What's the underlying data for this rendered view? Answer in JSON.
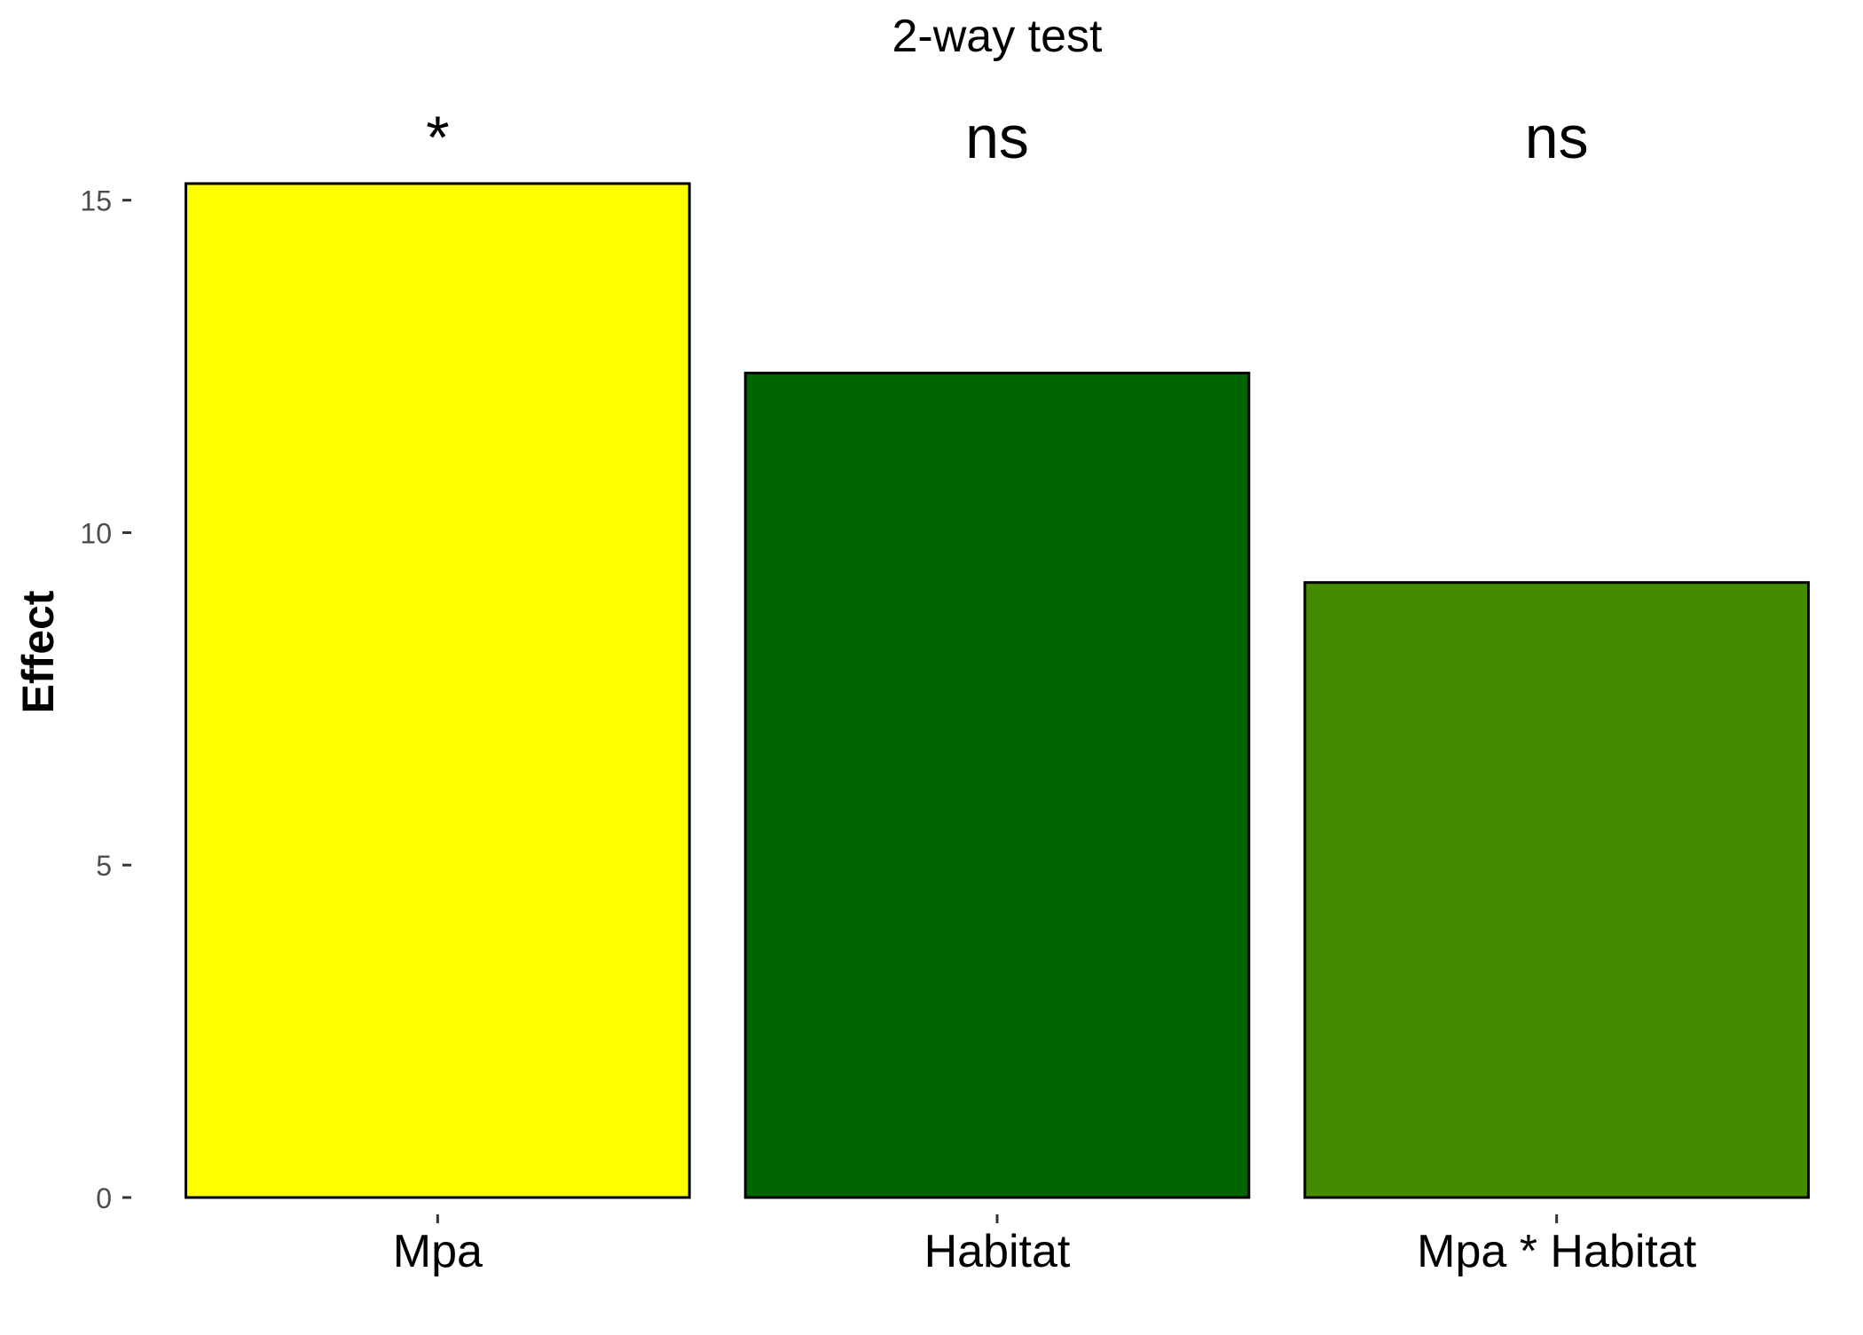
{
  "chart_data": {
    "type": "bar",
    "title": "2-way test",
    "xlabel": "",
    "ylabel": "Effect",
    "categories": [
      "Mpa",
      "Habitat",
      "Mpa * Habitat"
    ],
    "values": [
      15.25,
      12.4,
      9.25
    ],
    "colors": [
      "#FFFF00",
      "#006400",
      "#458B00"
    ],
    "annotations": [
      "*",
      "ns",
      "ns"
    ],
    "ylim": [
      0,
      16.25
    ],
    "yticks": [
      0,
      5,
      10,
      15
    ],
    "ytick_labels": [
      "0",
      "5",
      "10",
      "15"
    ],
    "grid": false,
    "legend": "none"
  }
}
